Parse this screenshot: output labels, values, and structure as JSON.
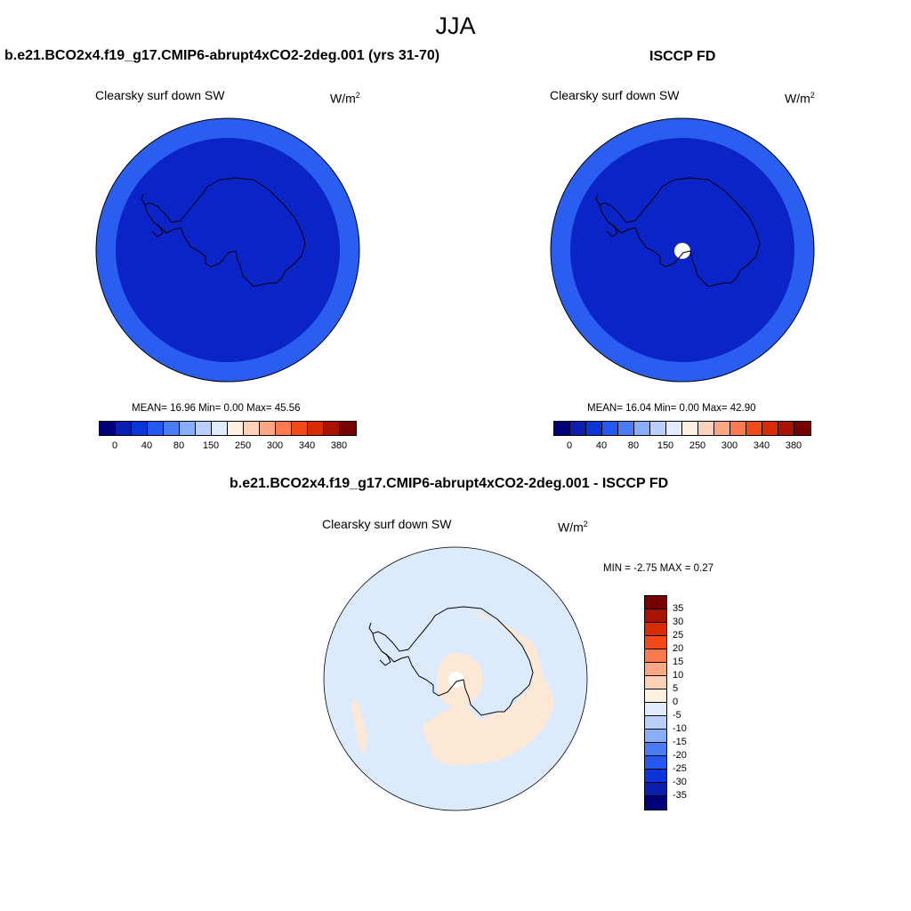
{
  "season_title": "JJA",
  "panels": [
    {
      "title": "b.e21.BCO2x4.f19_g17.CMIP6-abrupt4xCO2-2deg.001 (yrs 31-70)",
      "variable": "Clearsky surf down SW",
      "units_base": "W/m",
      "units_exp": "2",
      "stats_text": "MEAN=  16.96  Min=   0.00  Max=  45.56",
      "colorbar_ticks": [
        "0",
        "40",
        "80",
        "150",
        "250",
        "300",
        "340",
        "380"
      ],
      "outer_ring_color": "#2a5ef0",
      "inner_disk_color": "#0a24c8",
      "pole_hole": false
    },
    {
      "title": "ISCCP FD",
      "variable": "Clearsky surf down SW",
      "units_base": "W/m",
      "units_exp": "2",
      "stats_text": "MEAN=  16.04  Min=   0.00  Max=  42.90",
      "colorbar_ticks": [
        "0",
        "40",
        "80",
        "150",
        "250",
        "300",
        "340",
        "380"
      ],
      "outer_ring_color": "#2a5ef0",
      "inner_disk_color": "#0a24c8",
      "pole_hole": true
    }
  ],
  "diff_panel": {
    "title": "b.e21.BCO2x4.f19_g17.CMIP6-abrupt4xCO2-2deg.001 - ISCCP FD",
    "variable": "Clearsky surf down SW",
    "units_base": "W/m",
    "units_exp": "2",
    "stats_text": "MIN =  -2.75 MAX =   0.27",
    "background_color": "#dbeafc",
    "positive_color": "#fde8d6",
    "colorbar_ticks": [
      "35",
      "30",
      "25",
      "20",
      "15",
      "10",
      "5",
      "0",
      "-5",
      "-10",
      "-15",
      "-20",
      "-25",
      "-30",
      "-35"
    ]
  },
  "colorbar_colors_horizontal": [
    "#00007a",
    "#0a1fb0",
    "#0a36d8",
    "#2458f0",
    "#4a7cf5",
    "#89aef8",
    "#b9cffb",
    "#e0ebfd",
    "#fff0e0",
    "#fdd0b8",
    "#fca784",
    "#fb7b4f",
    "#f04a18",
    "#d82c04",
    "#a81400",
    "#760000"
  ],
  "colorbar_colors_vertical": [
    "#760000",
    "#a81400",
    "#d82c04",
    "#f04a18",
    "#fb7b4f",
    "#fca784",
    "#fdd0b8",
    "#fff0e0",
    "#e0ebfd",
    "#b9cffb",
    "#89aef8",
    "#4a7cf5",
    "#2458f0",
    "#0a36d8",
    "#0a1fb0",
    "#00007a"
  ]
}
